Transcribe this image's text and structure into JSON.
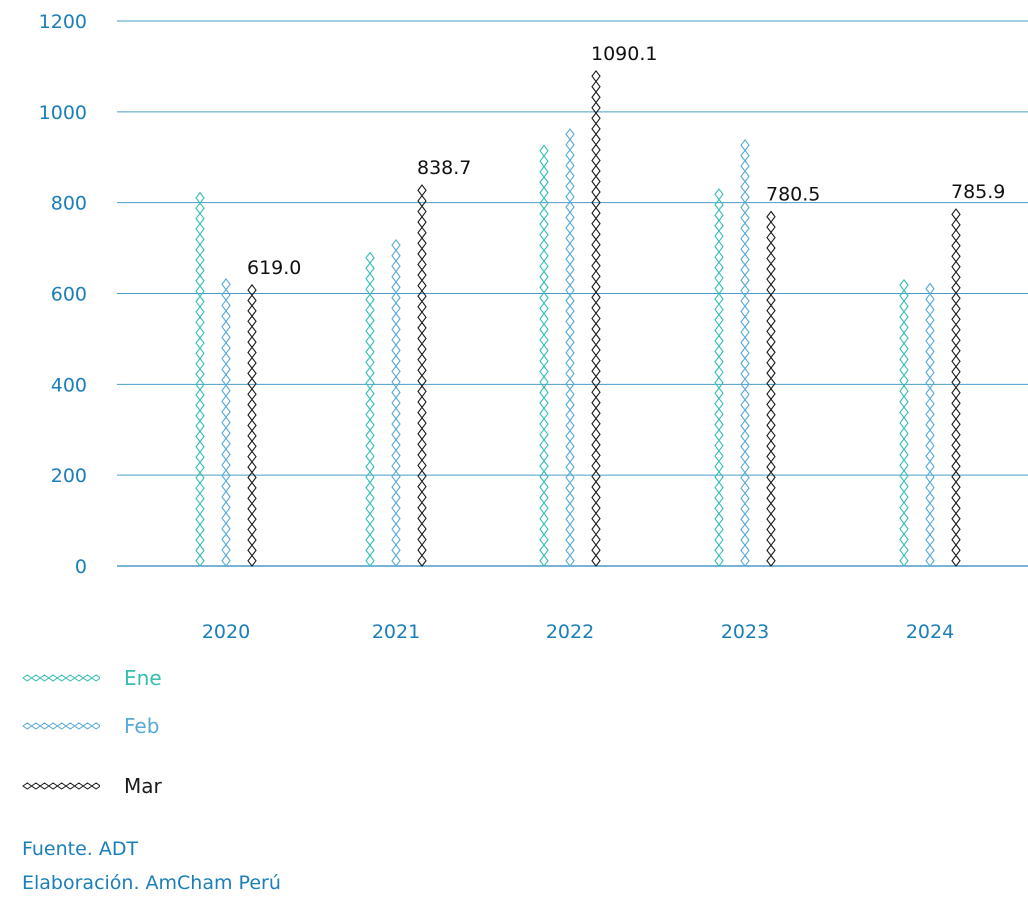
{
  "colors": {
    "axis_text": "#1a7fb8",
    "grid": "#4a9cc6",
    "Ene": "#35bfb3",
    "Feb": "#58a9d6",
    "Mar": "#1a1a1a"
  },
  "chart_data": {
    "type": "bar",
    "categories": [
      "2020",
      "2021",
      "2022",
      "2023",
      "2024"
    ],
    "series": [
      {
        "name": "Ene",
        "values": [
          822,
          690,
          926,
          830,
          630
        ]
      },
      {
        "name": "Feb",
        "values": [
          632,
          718,
          962,
          938,
          622
        ]
      },
      {
        "name": "Mar",
        "values": [
          619.0,
          838.7,
          1090.1,
          780.5,
          785.9
        ]
      }
    ],
    "data_labels": [
      "619.0",
      "838.7",
      "1090.1",
      "780.5",
      "785.9"
    ],
    "ylim": [
      0,
      1200
    ],
    "yticks": [
      0,
      200,
      400,
      600,
      800,
      1000,
      1200
    ],
    "grid": true,
    "legend_position": "bottom-left",
    "title": "",
    "xlabel": "",
    "ylabel": ""
  },
  "legend": {
    "items": [
      {
        "label": "Ene",
        "icon": "diamond-chain-icon"
      },
      {
        "label": "Feb",
        "icon": "diamond-chain-icon"
      },
      {
        "label": "Mar",
        "icon": "diamond-chain-icon"
      }
    ]
  },
  "source": {
    "fuente": "Fuente. ADT",
    "elaboracion": "Elaboración. AmCham Perú"
  }
}
